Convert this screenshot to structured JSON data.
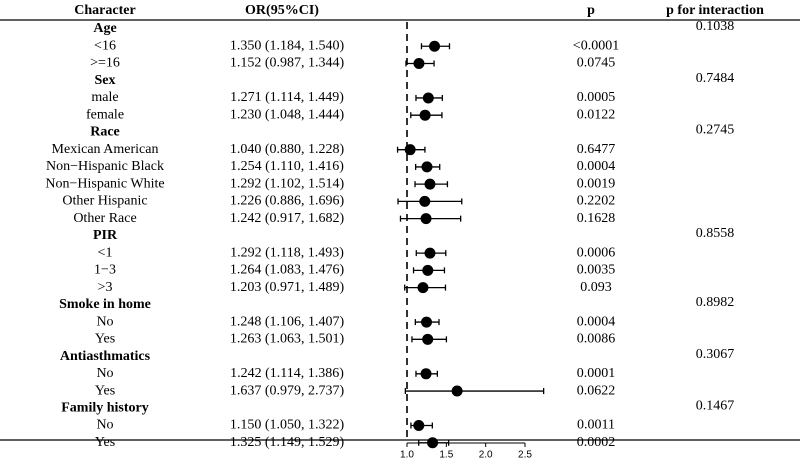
{
  "headers": {
    "character": "Character",
    "or": "OR(95%CI)",
    "p": "p",
    "p_interaction": "p for interaction"
  },
  "chart_data": {
    "type": "forest",
    "title": "",
    "xlabel": "",
    "xlim": [
      0.85,
      2.75
    ],
    "x_ticks": [
      1.0,
      1.5,
      2.0,
      2.5
    ],
    "tick_labels": [
      "1.0",
      "1.5",
      "2.0",
      "2.5"
    ],
    "reference_line": 1.0,
    "groups": [
      {
        "name": "Age",
        "p_interaction": "0.1038",
        "rows": [
          {
            "label": "<16",
            "or_text": "1.350 (1.184, 1.540)",
            "or": 1.35,
            "lo": 1.184,
            "hi": 1.54,
            "p": "<0.0001"
          },
          {
            "label": ">=16",
            "or_text": "1.152 (0.987, 1.344)",
            "or": 1.152,
            "lo": 0.987,
            "hi": 1.344,
            "p": "0.0745"
          }
        ]
      },
      {
        "name": "Sex",
        "p_interaction": "0.7484",
        "rows": [
          {
            "label": "male",
            "or_text": "1.271 (1.114, 1.449)",
            "or": 1.271,
            "lo": 1.114,
            "hi": 1.449,
            "p": "0.0005"
          },
          {
            "label": "female",
            "or_text": "1.230 (1.048, 1.444)",
            "or": 1.23,
            "lo": 1.048,
            "hi": 1.444,
            "p": "0.0122"
          }
        ]
      },
      {
        "name": "Race",
        "p_interaction": "0.2745",
        "rows": [
          {
            "label": "Mexican American",
            "or_text": "1.040 (0.880, 1.228)",
            "or": 1.04,
            "lo": 0.88,
            "hi": 1.228,
            "p": "0.6477"
          },
          {
            "label": "Non−Hispanic Black",
            "or_text": "1.254 (1.110, 1.416)",
            "or": 1.254,
            "lo": 1.11,
            "hi": 1.416,
            "p": "0.0004"
          },
          {
            "label": "Non−Hispanic White",
            "or_text": "1.292 (1.102, 1.514)",
            "or": 1.292,
            "lo": 1.102,
            "hi": 1.514,
            "p": "0.0019"
          },
          {
            "label": "Other Hispanic",
            "or_text": "1.226 (0.886, 1.696)",
            "or": 1.226,
            "lo": 0.886,
            "hi": 1.696,
            "p": "0.2202"
          },
          {
            "label": "Other Race",
            "or_text": "1.242 (0.917, 1.682)",
            "or": 1.242,
            "lo": 0.917,
            "hi": 1.682,
            "p": "0.1628"
          }
        ]
      },
      {
        "name": "PIR",
        "p_interaction": "0.8558",
        "rows": [
          {
            "label": "<1",
            "or_text": "1.292 (1.118, 1.493)",
            "or": 1.292,
            "lo": 1.118,
            "hi": 1.493,
            "p": "0.0006"
          },
          {
            "label": "1−3",
            "or_text": "1.264 (1.083, 1.476)",
            "or": 1.264,
            "lo": 1.083,
            "hi": 1.476,
            "p": "0.0035"
          },
          {
            "label": ">3",
            "or_text": "1.203 (0.971, 1.489)",
            "or": 1.203,
            "lo": 0.971,
            "hi": 1.489,
            "p": "0.093"
          }
        ]
      },
      {
        "name": "Smoke in home",
        "p_interaction": "0.8982",
        "rows": [
          {
            "label": "No",
            "or_text": "1.248 (1.106, 1.407)",
            "or": 1.248,
            "lo": 1.106,
            "hi": 1.407,
            "p": "0.0004"
          },
          {
            "label": "Yes",
            "or_text": "1.263 (1.063, 1.501)",
            "or": 1.263,
            "lo": 1.063,
            "hi": 1.501,
            "p": "0.0086"
          }
        ]
      },
      {
        "name": "Antiasthmatics",
        "p_interaction": "0.3067",
        "rows": [
          {
            "label": "No",
            "or_text": "1.242 (1.114, 1.386)",
            "or": 1.242,
            "lo": 1.114,
            "hi": 1.386,
            "p": "0.0001"
          },
          {
            "label": "Yes",
            "or_text": "1.637 (0.979, 2.737)",
            "or": 1.637,
            "lo": 0.979,
            "hi": 2.737,
            "p": "0.0622"
          }
        ]
      },
      {
        "name": "Family history",
        "p_interaction": "0.1467",
        "rows": [
          {
            "label": "No",
            "or_text": "1.150 (1.050, 1.322)",
            "or": 1.15,
            "lo": 1.05,
            "hi": 1.322,
            "p": "0.0011"
          },
          {
            "label": "Yes",
            "or_text": "1.325 (1.149, 1.529)",
            "or": 1.325,
            "lo": 1.149,
            "hi": 1.529,
            "p": "0.0002"
          }
        ]
      }
    ]
  }
}
